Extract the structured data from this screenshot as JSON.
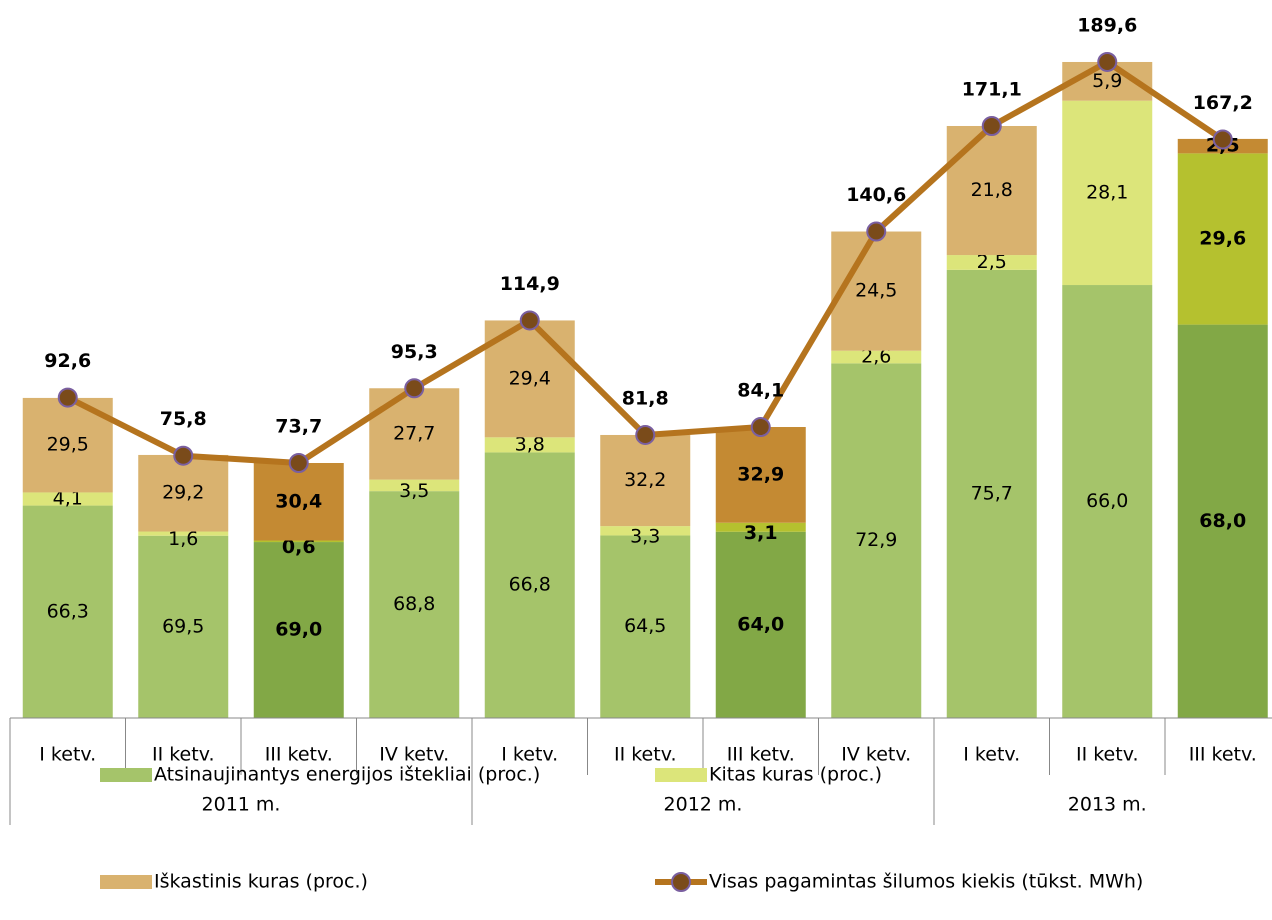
{
  "chart_data": {
    "type": "bar",
    "categories": [
      "I ketv.",
      "II ketv.",
      "III ketv.",
      "IV ketv.",
      "I ketv.",
      "II ketv.",
      "III ketv.",
      "IV ketv.",
      "I ketv.",
      "II ketv.",
      "III ketv."
    ],
    "groups": [
      {
        "name": "2011 m.",
        "count": 4
      },
      {
        "name": "2012 m.",
        "count": 4
      },
      {
        "name": "2013 m.",
        "count": 3
      }
    ],
    "highlight": [
      false,
      false,
      true,
      false,
      false,
      false,
      true,
      false,
      false,
      false,
      true
    ],
    "ylim": [
      0,
      200
    ],
    "series": [
      {
        "name": "Atsinaujinantys energijos ištekliai (proc.)",
        "color": "#a5c46a",
        "highlight_color": "#82a846",
        "values": [
          66.3,
          69.5,
          69.0,
          68.8,
          66.8,
          64.5,
          64.0,
          72.9,
          75.7,
          66.0,
          68.0
        ],
        "value_labels": [
          "66,3",
          "69,5",
          "69,0",
          "68,8",
          "66,8",
          "64,5",
          "64,0",
          "72,9",
          "75,7",
          "66,0",
          "68,0"
        ]
      },
      {
        "name": "Kitas kuras (proc.)",
        "color": "#dce57a",
        "highlight_color": "#b5c12f",
        "values": [
          4.1,
          1.6,
          0.6,
          3.5,
          3.8,
          3.3,
          3.1,
          2.6,
          2.5,
          28.1,
          29.6
        ],
        "value_labels": [
          "4,1",
          "1,6",
          "0,6",
          "3,5",
          "3,8",
          "3,3",
          "3,1",
          "2,6",
          "2,5",
          "28,1",
          "29,6"
        ]
      },
      {
        "name": "Iškastinis kuras (proc.)",
        "color": "#d9b26f",
        "highlight_color": "#c48a33",
        "values": [
          29.5,
          29.2,
          30.4,
          27.7,
          29.4,
          32.2,
          32.9,
          24.5,
          21.8,
          5.9,
          2.5
        ],
        "value_labels": [
          "29,5",
          "29,2",
          "30,4",
          "27,7",
          "29,4",
          "32,2",
          "32,9",
          "24,5",
          "21,8",
          "5,9",
          "2,5"
        ]
      },
      {
        "name": "Visas pagamintas šilumos kiekis (tūkst. MWh)",
        "type": "line",
        "color": "#b5741e",
        "marker_color": "#7a4b1a",
        "values": [
          92.6,
          75.8,
          73.7,
          95.3,
          114.9,
          81.8,
          84.1,
          140.6,
          171.1,
          189.6,
          167.2
        ],
        "value_labels": [
          "92,6",
          "75,8",
          "73,7",
          "95,3",
          "114,9",
          "81,8",
          "84,1",
          "140,6",
          "171,1",
          "189,6",
          "167,2"
        ]
      }
    ]
  }
}
